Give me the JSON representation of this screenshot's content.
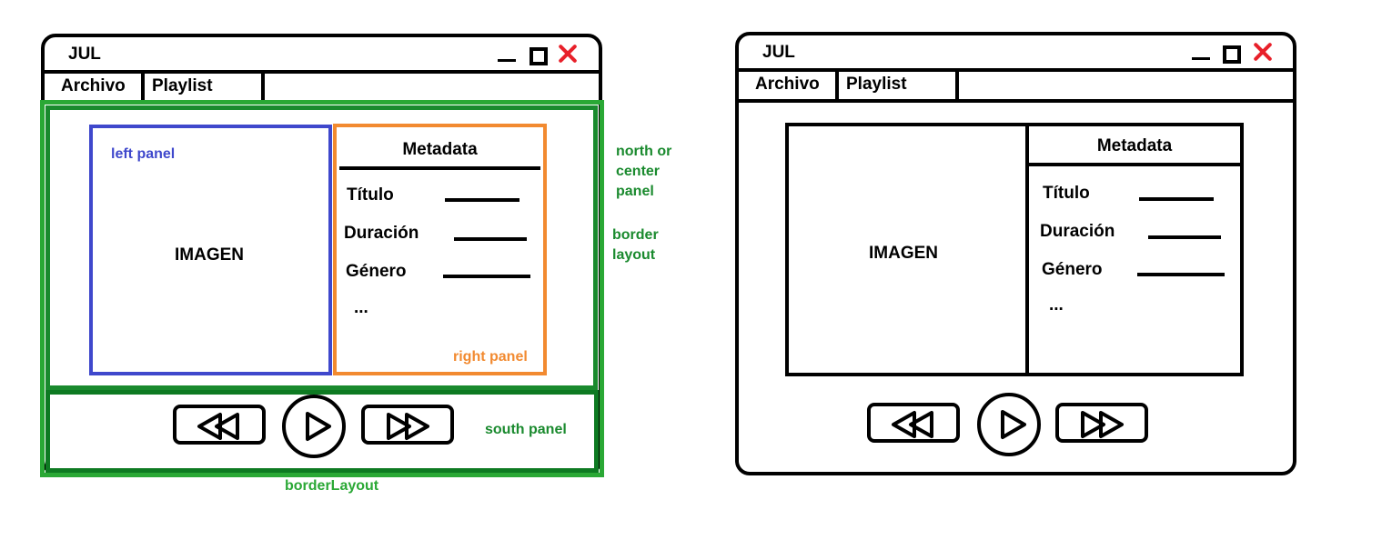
{
  "colors": {
    "outline": "#000000",
    "close_x": "#e8202a",
    "border_layout": "#1a8a2e",
    "south_panel": "#0e7a22",
    "annotation_green": "#2aa835",
    "left_panel": "#3f48cc",
    "right_panel": "#f28a30"
  },
  "annotated_mockup": {
    "title": "JUL",
    "menu": [
      "Archivo",
      "Playlist"
    ],
    "window_controls": [
      "minimize-icon",
      "maximize-icon",
      "close-icon"
    ],
    "image_label": "IMAGEN",
    "metadata": {
      "header": "Metadata",
      "fields": [
        "Título",
        "Duración",
        "Género"
      ],
      "more": "..."
    },
    "player_buttons": [
      "rewind-icon",
      "play-icon",
      "fast-forward-icon"
    ],
    "annotations": {
      "left_panel": "left panel",
      "right_panel": "right panel",
      "north_center_panel": [
        "north or",
        "center",
        "panel"
      ],
      "border_layout_side": [
        "border",
        "layout"
      ],
      "south_panel": "south panel",
      "border_layout_bottom": "borderLayout"
    }
  },
  "clean_mockup": {
    "title": "JUL",
    "menu": [
      "Archivo",
      "Playlist"
    ],
    "window_controls": [
      "minimize-icon",
      "maximize-icon",
      "close-icon"
    ],
    "image_label": "IMAGEN",
    "metadata": {
      "header": "Metadata",
      "fields": [
        "Título",
        "Duración",
        "Género"
      ],
      "more": "..."
    },
    "player_buttons": [
      "rewind-icon",
      "play-icon",
      "fast-forward-icon"
    ]
  }
}
